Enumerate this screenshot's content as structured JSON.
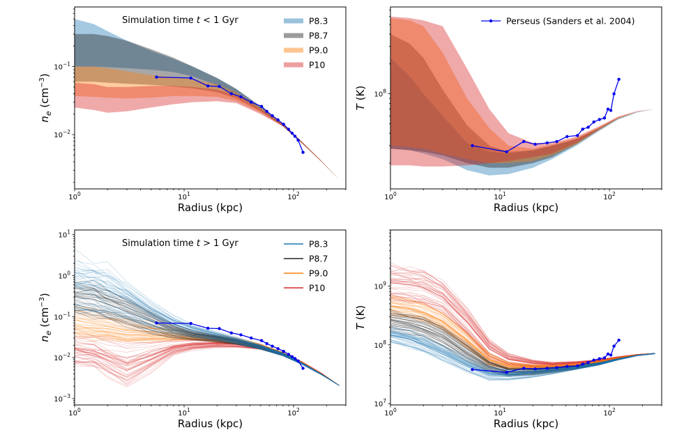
{
  "colors": {
    "P8.3": "#1f77b4",
    "P8.7": "#222222",
    "P9.0": "#ff7f0e",
    "P10": "#d62728",
    "perseus": "#0000ee"
  },
  "chart_data": [
    {
      "panel": "top-left",
      "type": "area",
      "annotation": "Simulation time t < 1 Gyr",
      "xlabel": "Radius (kpc)",
      "ylabel": "n_e (cm^-3)",
      "xscale": "log",
      "yscale": "log",
      "xlim": [
        1,
        300
      ],
      "ylim": [
        0.0016,
        0.75
      ],
      "x_ticks": [
        {
          "v": 1,
          "base": "10",
          "exp": "0"
        },
        {
          "v": 10,
          "base": "10",
          "exp": "1"
        },
        {
          "v": 100,
          "base": "10",
          "exp": "2"
        }
      ],
      "y_ticks": [
        {
          "v": 0.01,
          "base": "10",
          "exp": "−2"
        },
        {
          "v": 0.1,
          "base": "10",
          "exp": "−1"
        }
      ],
      "legend": {
        "placement": "top-right",
        "entries": [
          "P8.3",
          "P8.7",
          "P9.0",
          "P10"
        ],
        "style": "band"
      },
      "x": [
        1,
        1.5,
        2,
        3,
        5,
        8,
        12,
        20,
        30,
        50,
        80,
        120,
        180,
        260
      ],
      "series": [
        {
          "name": "P8.3",
          "lower": [
            0.1,
            0.1,
            0.098,
            0.095,
            0.09,
            0.083,
            0.072,
            0.053,
            0.038,
            0.023,
            0.0132,
            0.0074,
            0.004,
            0.0022
          ],
          "upper": [
            0.5,
            0.42,
            0.33,
            0.24,
            0.17,
            0.13,
            0.1,
            0.068,
            0.047,
            0.026,
            0.0142,
            0.0078,
            0.0041,
            0.0022
          ]
        },
        {
          "name": "P8.7",
          "lower": [
            0.06,
            0.06,
            0.058,
            0.056,
            0.054,
            0.051,
            0.048,
            0.042,
            0.034,
            0.022,
            0.0132,
            0.0074,
            0.004,
            0.0022
          ],
          "upper": [
            0.3,
            0.3,
            0.28,
            0.24,
            0.18,
            0.135,
            0.1,
            0.068,
            0.047,
            0.026,
            0.0142,
            0.0078,
            0.0041,
            0.0022
          ]
        },
        {
          "name": "P9.0",
          "lower": [
            0.037,
            0.036,
            0.035,
            0.034,
            0.035,
            0.037,
            0.037,
            0.036,
            0.031,
            0.021,
            0.0132,
            0.0074,
            0.004,
            0.0022
          ],
          "upper": [
            0.1,
            0.1,
            0.095,
            0.085,
            0.075,
            0.07,
            0.065,
            0.055,
            0.042,
            0.025,
            0.0142,
            0.0078,
            0.0041,
            0.0022
          ]
        },
        {
          "name": "P10",
          "lower": [
            0.025,
            0.023,
            0.021,
            0.022,
            0.025,
            0.028,
            0.03,
            0.031,
            0.029,
            0.02,
            0.0132,
            0.0074,
            0.004,
            0.0022
          ],
          "upper": [
            0.058,
            0.055,
            0.05,
            0.05,
            0.052,
            0.052,
            0.05,
            0.046,
            0.038,
            0.024,
            0.0142,
            0.0078,
            0.0041,
            0.0022
          ]
        }
      ],
      "observed": {
        "x": [
          5.6,
          11.5,
          16.5,
          21,
          27,
          33,
          41,
          51,
          57,
          64,
          72,
          81,
          90,
          97,
          103,
          110,
          122
        ],
        "y": [
          0.07,
          0.068,
          0.052,
          0.051,
          0.04,
          0.036,
          0.03,
          0.026,
          0.022,
          0.019,
          0.0165,
          0.0142,
          0.012,
          0.0105,
          0.0095,
          0.0083,
          0.0055
        ]
      }
    },
    {
      "panel": "top-right",
      "type": "area",
      "annotation": "",
      "xlabel": "Radius (kpc)",
      "ylabel": "T (K)",
      "xscale": "log",
      "yscale": "log",
      "xlim": [
        1,
        300
      ],
      "ylim": [
        11000000,
        750000000
      ],
      "x_ticks": [
        {
          "v": 1,
          "base": "10",
          "exp": "0"
        },
        {
          "v": 10,
          "base": "10",
          "exp": "1"
        },
        {
          "v": 100,
          "base": "10",
          "exp": "2"
        }
      ],
      "y_ticks": [
        {
          "v": 100000000,
          "base": "10",
          "exp": "8"
        }
      ],
      "legend": {
        "placement": "top-right",
        "entries": [
          "Perseus (Sanders et al. 2004)"
        ],
        "style": "observed"
      },
      "x": [
        1,
        1.5,
        2,
        3,
        5,
        8,
        12,
        20,
        30,
        50,
        80,
        120,
        180,
        260
      ],
      "series": [
        {
          "name": "P8.3",
          "lower": [
            28000000,
            27000000,
            25000000,
            22000000,
            17000000,
            15000000,
            15500000,
            18000000,
            22000000,
            30000000,
            42000000,
            55000000,
            65000000,
            70000000
          ],
          "upper": [
            230000000,
            150000000,
            100000000,
            60000000,
            32000000,
            26000000,
            25000000,
            27000000,
            30000000,
            35000000,
            45000000,
            57000000,
            66000000,
            70000000
          ]
        },
        {
          "name": "P8.7",
          "lower": [
            28000000,
            27000000,
            26000000,
            24000000,
            20000000,
            18000000,
            18000000,
            20000000,
            23000000,
            31000000,
            43000000,
            56000000,
            66000000,
            70000000
          ],
          "upper": [
            400000000,
            320000000,
            230000000,
            110000000,
            48000000,
            30000000,
            26000000,
            27000000,
            30000000,
            35000000,
            45000000,
            57000000,
            66000000,
            70000000
          ]
        },
        {
          "name": "P9.0",
          "lower": [
            30000000,
            29000000,
            28000000,
            25000000,
            22000000,
            20000000,
            20000000,
            21000000,
            24000000,
            31000000,
            43000000,
            56000000,
            66000000,
            70000000
          ],
          "upper": [
            580000000,
            550000000,
            480000000,
            260000000,
            90000000,
            45000000,
            30000000,
            28000000,
            31000000,
            36000000,
            46000000,
            58000000,
            66000000,
            70000000
          ]
        },
        {
          "name": "P10",
          "lower": [
            19000000,
            19000000,
            18500000,
            18500000,
            19000000,
            20000000,
            21000000,
            23000000,
            25000000,
            32000000,
            44000000,
            57000000,
            66000000,
            70000000
          ],
          "upper": [
            600000000,
            580000000,
            550000000,
            480000000,
            180000000,
            70000000,
            40000000,
            32000000,
            32000000,
            37000000,
            47000000,
            59000000,
            67000000,
            70000000
          ]
        }
      ],
      "observed": {
        "x": [
          5.6,
          11.5,
          16.5,
          21,
          27,
          33,
          41,
          51,
          57,
          64,
          72,
          81,
          90,
          97,
          103,
          110,
          122
        ],
        "y": [
          30000000,
          26000000,
          33000000,
          31000000,
          32000000,
          33000000,
          37000000,
          38000000,
          44000000,
          46000000,
          52000000,
          55000000,
          57000000,
          70000000,
          68000000,
          100000000,
          140000000
        ]
      }
    },
    {
      "panel": "bottom-left",
      "type": "line",
      "annotation": "Simulation time t > 1 Gyr",
      "xlabel": "Radius (kpc)",
      "ylabel": "n_e (cm^-3)",
      "xscale": "log",
      "yscale": "log",
      "xlim": [
        1,
        300
      ],
      "ylim": [
        0.0007,
        13
      ],
      "x_ticks": [
        {
          "v": 1,
          "base": "10",
          "exp": "0"
        },
        {
          "v": 10,
          "base": "10",
          "exp": "1"
        },
        {
          "v": 100,
          "base": "10",
          "exp": "2"
        }
      ],
      "y_ticks": [
        {
          "v": 0.001,
          "base": "10",
          "exp": "−3"
        },
        {
          "v": 0.01,
          "base": "10",
          "exp": "−2"
        },
        {
          "v": 0.1,
          "base": "10",
          "exp": "−1"
        },
        {
          "v": 1,
          "base": "10",
          "exp": "0"
        },
        {
          "v": 10,
          "base": "10",
          "exp": "1"
        }
      ],
      "legend": {
        "placement": "top-right",
        "entries": [
          "P8.3",
          "P8.7",
          "P9.0",
          "P10"
        ],
        "style": "line"
      },
      "x": [
        1,
        1.5,
        2,
        3,
        5,
        8,
        12,
        20,
        30,
        50,
        80,
        120,
        180,
        260
      ],
      "series": [
        {
          "name": "P8.3",
          "lower": [
            0.15,
            0.13,
            0.11,
            0.085,
            0.055,
            0.04,
            0.033,
            0.027,
            0.022,
            0.016,
            0.011,
            0.0068,
            0.0038,
            0.0021
          ],
          "upper": [
            3.2,
            2.5,
            1.7,
            0.8,
            0.25,
            0.11,
            0.065,
            0.043,
            0.032,
            0.021,
            0.013,
            0.0075,
            0.004,
            0.0021
          ]
        },
        {
          "name": "P8.7",
          "lower": [
            0.12,
            0.1,
            0.08,
            0.06,
            0.04,
            0.03,
            0.027,
            0.024,
            0.021,
            0.016,
            0.011,
            0.0068,
            0.0038,
            0.0021
          ],
          "upper": [
            0.8,
            0.7,
            0.5,
            0.3,
            0.15,
            0.07,
            0.045,
            0.035,
            0.029,
            0.02,
            0.013,
            0.0075,
            0.004,
            0.0021
          ]
        },
        {
          "name": "P9.0",
          "lower": [
            0.035,
            0.03,
            0.028,
            0.025,
            0.026,
            0.028,
            0.027,
            0.025,
            0.022,
            0.017,
            0.0115,
            0.007,
            0.0039,
            0.0021
          ],
          "upper": [
            0.2,
            0.15,
            0.12,
            0.09,
            0.07,
            0.055,
            0.045,
            0.037,
            0.031,
            0.022,
            0.0135,
            0.0078,
            0.0041,
            0.0021
          ]
        },
        {
          "name": "P10",
          "lower": [
            0.007,
            0.006,
            0.004,
            0.0022,
            0.005,
            0.012,
            0.016,
            0.018,
            0.018,
            0.016,
            0.0115,
            0.0071,
            0.0039,
            0.0021
          ],
          "upper": [
            0.04,
            0.035,
            0.03,
            0.025,
            0.025,
            0.027,
            0.028,
            0.028,
            0.027,
            0.021,
            0.0135,
            0.008,
            0.0042,
            0.0021
          ]
        }
      ],
      "observed": {
        "x": [
          5.6,
          11.5,
          16.5,
          21,
          27,
          33,
          41,
          51,
          57,
          64,
          72,
          81,
          90,
          97,
          103,
          110,
          122
        ],
        "y": [
          0.07,
          0.068,
          0.052,
          0.051,
          0.04,
          0.036,
          0.03,
          0.026,
          0.022,
          0.019,
          0.0165,
          0.0142,
          0.012,
          0.0105,
          0.0095,
          0.0083,
          0.0055
        ]
      }
    },
    {
      "panel": "bottom-right",
      "type": "line",
      "annotation": "",
      "xlabel": "Radius (kpc)",
      "ylabel": "T (K)",
      "xscale": "log",
      "yscale": "log",
      "xlim": [
        1,
        300
      ],
      "ylim": [
        9500000,
        9000000000
      ],
      "x_ticks": [
        {
          "v": 1,
          "base": "10",
          "exp": "0"
        },
        {
          "v": 10,
          "base": "10",
          "exp": "1"
        },
        {
          "v": 100,
          "base": "10",
          "exp": "2"
        }
      ],
      "y_ticks": [
        {
          "v": 10000000,
          "base": "10",
          "exp": "7"
        },
        {
          "v": 100000000,
          "base": "10",
          "exp": "8"
        },
        {
          "v": 1000000000,
          "base": "10",
          "exp": "9"
        }
      ],
      "legend": null,
      "x": [
        1,
        1.5,
        2,
        3,
        5,
        8,
        12,
        20,
        30,
        50,
        80,
        120,
        180,
        260
      ],
      "series": [
        {
          "name": "P8.3",
          "lower": [
            110000000,
            90000000,
            75000000,
            55000000,
            35000000,
            25000000,
            25000000,
            28000000,
            32000000,
            38000000,
            45000000,
            55000000,
            65000000,
            70000000
          ],
          "upper": [
            200000000,
            170000000,
            140000000,
            100000000,
            60000000,
            40000000,
            37000000,
            39000000,
            41000000,
            44000000,
            50000000,
            58000000,
            67000000,
            72000000
          ]
        },
        {
          "name": "P8.7",
          "lower": [
            180000000,
            160000000,
            140000000,
            100000000,
            55000000,
            35000000,
            30000000,
            31000000,
            34000000,
            39000000,
            46000000,
            56000000,
            66000000,
            71000000
          ],
          "upper": [
            400000000,
            350000000,
            300000000,
            220000000,
            110000000,
            55000000,
            42000000,
            41000000,
            42000000,
            45000000,
            50000000,
            59000000,
            67000000,
            72000000
          ]
        },
        {
          "name": "P9.0",
          "lower": [
            300000000,
            280000000,
            250000000,
            180000000,
            90000000,
            45000000,
            38000000,
            38000000,
            39000000,
            42000000,
            48000000,
            57000000,
            66000000,
            71000000
          ],
          "upper": [
            700000000,
            600000000,
            500000000,
            350000000,
            160000000,
            70000000,
            50000000,
            46000000,
            45000000,
            48000000,
            53000000,
            61000000,
            68000000,
            72000000
          ]
        },
        {
          "name": "P10",
          "lower": [
            600000000,
            550000000,
            500000000,
            350000000,
            150000000,
            60000000,
            45000000,
            42000000,
            42000000,
            45000000,
            50000000,
            58000000,
            67000000,
            71000000
          ],
          "upper": [
            2200000000,
            2000000000,
            1800000000,
            1200000000,
            400000000,
            120000000,
            70000000,
            55000000,
            50000000,
            52000000,
            56000000,
            63000000,
            69000000,
            72000000
          ]
        }
      ],
      "observed": {
        "x": [
          5.6,
          11.5,
          16.5,
          21,
          27,
          33,
          41,
          51,
          57,
          64,
          72,
          81,
          90,
          97,
          103,
          110,
          122
        ],
        "y": [
          38000000,
          34000000,
          40000000,
          39000000,
          40000000,
          41000000,
          43000000,
          44000000,
          47000000,
          50000000,
          55000000,
          58000000,
          60000000,
          70000000,
          67000000,
          95000000,
          120000000
        ]
      }
    }
  ]
}
